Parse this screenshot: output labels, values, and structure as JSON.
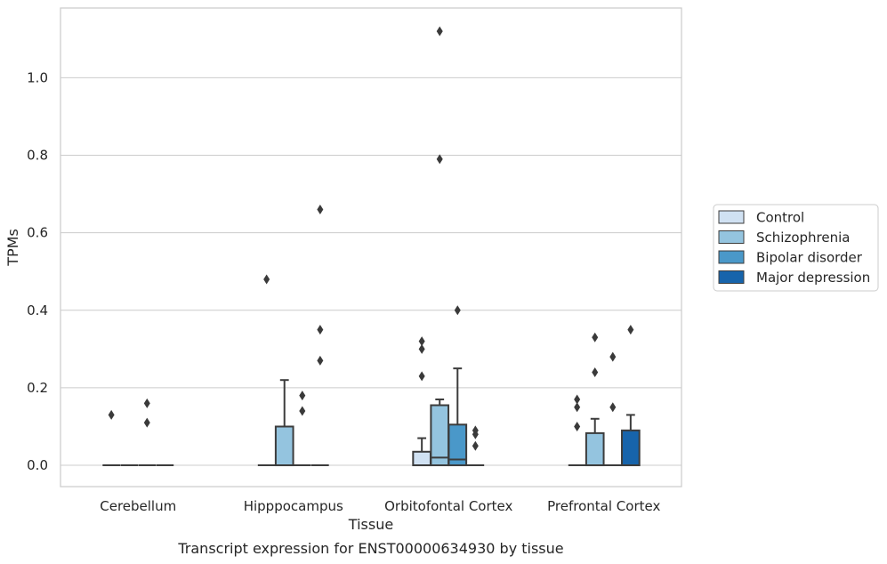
{
  "chart_data": {
    "type": "box",
    "caption": "Transcript expression for ENST00000634930 by tissue",
    "xlabel": "Tissue",
    "ylabel": "TPMs",
    "ylim": [
      -0.055,
      1.18
    ],
    "yticks": [
      0.0,
      0.2,
      0.4,
      0.6,
      0.8,
      1.0
    ],
    "ytick_labels": [
      "0.0",
      "0.2",
      "0.4",
      "0.6",
      "0.8",
      "1.0"
    ],
    "categories": [
      "Cerebellum",
      "Hipppocampus",
      "Orbitofontal Cortex",
      "Prefrontal Cortex"
    ],
    "grid": "horizontal",
    "legend_position": "right",
    "series": [
      {
        "name": "Control",
        "color": "#d0e1f2",
        "boxes": [
          {
            "q1": 0,
            "median": 0,
            "q3": 0,
            "whislo": 0,
            "whishi": 0,
            "fliers": [
              0.13
            ]
          },
          {
            "q1": 0,
            "median": 0,
            "q3": 0,
            "whislo": 0,
            "whishi": 0,
            "fliers": [
              0.48
            ]
          },
          {
            "q1": 0,
            "median": 0,
            "q3": 0.035,
            "whislo": 0,
            "whishi": 0.07,
            "fliers": [
              0.23,
              0.3,
              0.32
            ]
          },
          {
            "q1": 0,
            "median": 0,
            "q3": 0,
            "whislo": 0,
            "whishi": 0,
            "fliers": [
              0.1,
              0.15,
              0.17
            ]
          }
        ]
      },
      {
        "name": "Schizophrenia",
        "color": "#94c4df",
        "boxes": [
          {
            "q1": 0,
            "median": 0,
            "q3": 0,
            "whislo": 0,
            "whishi": 0,
            "fliers": []
          },
          {
            "q1": 0,
            "median": 0,
            "q3": 0.1,
            "whislo": 0,
            "whishi": 0.22,
            "fliers": []
          },
          {
            "q1": 0,
            "median": 0.02,
            "q3": 0.155,
            "whislo": 0,
            "whishi": 0.17,
            "fliers": [
              0.79,
              1.12
            ]
          },
          {
            "q1": 0,
            "median": 0,
            "q3": 0.083,
            "whislo": 0,
            "whishi": 0.12,
            "fliers": [
              0.24,
              0.33
            ]
          }
        ]
      },
      {
        "name": "Bipolar disorder",
        "color": "#4a98c9",
        "boxes": [
          {
            "q1": 0,
            "median": 0,
            "q3": 0,
            "whislo": 0,
            "whishi": 0,
            "fliers": [
              0.11,
              0.16
            ]
          },
          {
            "q1": 0,
            "median": 0,
            "q3": 0,
            "whislo": 0,
            "whishi": 0,
            "fliers": [
              0.14,
              0.18
            ]
          },
          {
            "q1": 0,
            "median": 0.015,
            "q3": 0.105,
            "whislo": 0,
            "whishi": 0.25,
            "fliers": [
              0.4
            ]
          },
          {
            "q1": 0,
            "median": 0,
            "q3": 0,
            "whislo": 0,
            "whishi": 0,
            "fliers": [
              0.15,
              0.28
            ]
          }
        ]
      },
      {
        "name": "Major depression",
        "color": "#1764ab",
        "boxes": [
          {
            "q1": 0,
            "median": 0,
            "q3": 0,
            "whislo": 0,
            "whishi": 0,
            "fliers": []
          },
          {
            "q1": 0,
            "median": 0,
            "q3": 0,
            "whislo": 0,
            "whishi": 0,
            "fliers": [
              0.27,
              0.35,
              0.66
            ]
          },
          {
            "q1": 0,
            "median": 0,
            "q3": 0,
            "whislo": 0,
            "whishi": 0,
            "fliers": [
              0.05,
              0.08,
              0.09
            ]
          },
          {
            "q1": 0,
            "median": 0,
            "q3": 0.09,
            "whislo": 0,
            "whishi": 0.13,
            "fliers": [
              0.35
            ]
          }
        ]
      }
    ]
  }
}
